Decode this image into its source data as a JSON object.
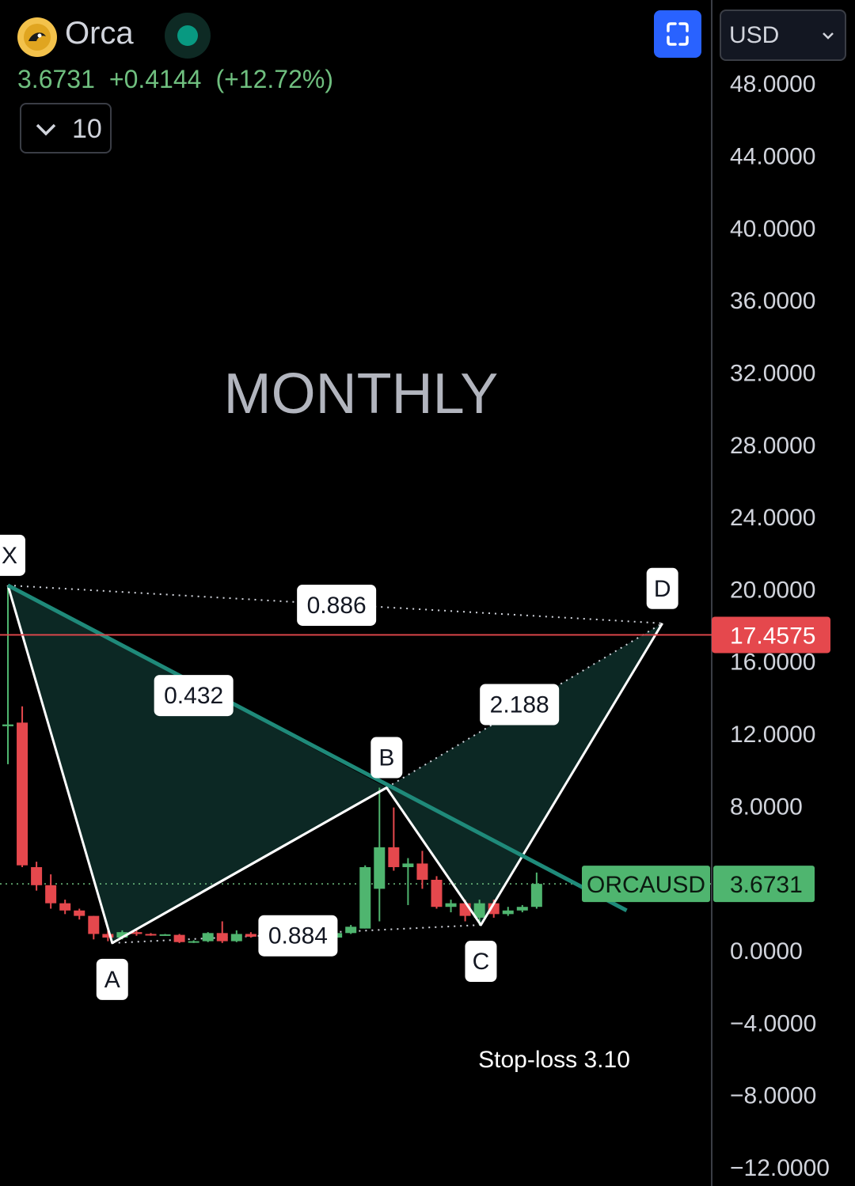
{
  "header": {
    "symbol_name": "Orca",
    "last_price": "3.6731",
    "change": "+0.4144",
    "change_pct": "(+12.72%)",
    "indicator_count": "10",
    "currency": "USD",
    "colors": {
      "up": "#6fbf7f",
      "accent": "#2962ff",
      "live": "#089981"
    },
    "icons": {
      "logo": "orca-logo-icon",
      "status": "market-open-icon",
      "collapse": "chevron-down-icon",
      "fullscreen": "fullscreen-icon",
      "currency": "chevron-down-icon"
    }
  },
  "chart_data": {
    "type": "candlestick",
    "watermark": "MONTHLY",
    "ylim": [
      -12,
      50
    ],
    "y_ticks": [
      "48.0000",
      "44.0000",
      "40.0000",
      "36.0000",
      "32.0000",
      "28.0000",
      "24.0000",
      "20.0000",
      "16.0000",
      "12.0000",
      "8.0000",
      "0.0000",
      "−4.0000",
      "−8.0000",
      "−12.0000"
    ],
    "y_tick_values": [
      48,
      44,
      40,
      36,
      32,
      28,
      24,
      20,
      16,
      12,
      8,
      0,
      -4,
      -8,
      -12
    ],
    "candles": [
      {
        "o": 12.4,
        "h": 20.2,
        "l": 10.3,
        "c": 12.5
      },
      {
        "o": 12.6,
        "h": 13.5,
        "l": 4.6,
        "c": 4.7
      },
      {
        "o": 4.6,
        "h": 4.9,
        "l": 3.3,
        "c": 3.6
      },
      {
        "o": 3.6,
        "h": 4.2,
        "l": 2.3,
        "c": 2.6
      },
      {
        "o": 2.6,
        "h": 2.8,
        "l": 2.0,
        "c": 2.2
      },
      {
        "o": 2.2,
        "h": 2.3,
        "l": 1.7,
        "c": 1.9
      },
      {
        "o": 1.9,
        "h": 1.9,
        "l": 0.6,
        "c": 0.9
      },
      {
        "o": 0.9,
        "h": 1.1,
        "l": 0.5,
        "c": 0.7
      },
      {
        "o": 0.7,
        "h": 1.1,
        "l": 0.6,
        "c": 1.0
      },
      {
        "o": 1.0,
        "h": 1.1,
        "l": 0.8,
        "c": 0.9
      },
      {
        "o": 0.9,
        "h": 0.95,
        "l": 0.8,
        "c": 0.85
      },
      {
        "o": 0.85,
        "h": 0.9,
        "l": 0.8,
        "c": 0.88
      },
      {
        "o": 0.85,
        "h": 0.9,
        "l": 0.4,
        "c": 0.45
      },
      {
        "o": 0.45,
        "h": 0.55,
        "l": 0.4,
        "c": 0.5
      },
      {
        "o": 0.5,
        "h": 1.0,
        "l": 0.45,
        "c": 0.95
      },
      {
        "o": 0.95,
        "h": 1.6,
        "l": 0.4,
        "c": 0.5
      },
      {
        "o": 0.5,
        "h": 1.1,
        "l": 0.45,
        "c": 0.9
      },
      {
        "o": 0.9,
        "h": 1.0,
        "l": 0.7,
        "c": 0.75
      },
      {
        "o": 0.75,
        "h": 0.9,
        "l": 0.7,
        "c": 0.8
      },
      {
        "o": 0.8,
        "h": 0.85,
        "l": 0.5,
        "c": 0.55
      },
      {
        "o": 0.55,
        "h": 0.95,
        "l": 0.5,
        "c": 0.9
      },
      {
        "o": 0.9,
        "h": 1.0,
        "l": 0.6,
        "c": 0.65
      },
      {
        "o": 0.65,
        "h": 1.3,
        "l": 0.6,
        "c": 0.7
      },
      {
        "o": 0.7,
        "h": 1.0,
        "l": 0.65,
        "c": 0.95
      },
      {
        "o": 0.95,
        "h": 1.4,
        "l": 0.9,
        "c": 1.3
      },
      {
        "o": 1.2,
        "h": 4.7,
        "l": 1.2,
        "c": 4.6
      },
      {
        "o": 3.4,
        "h": 9.0,
        "l": 1.6,
        "c": 5.7
      },
      {
        "o": 5.7,
        "h": 7.9,
        "l": 4.4,
        "c": 4.6
      },
      {
        "o": 4.6,
        "h": 5.1,
        "l": 2.5,
        "c": 4.8
      },
      {
        "o": 4.8,
        "h": 5.5,
        "l": 3.4,
        "c": 3.9
      },
      {
        "o": 3.9,
        "h": 4.1,
        "l": 2.3,
        "c": 2.4
      },
      {
        "o": 2.4,
        "h": 2.8,
        "l": 2.1,
        "c": 2.6
      },
      {
        "o": 2.6,
        "h": 2.8,
        "l": 1.6,
        "c": 1.9
      },
      {
        "o": 1.8,
        "h": 2.8,
        "l": 1.4,
        "c": 2.6
      },
      {
        "o": 2.6,
        "h": 2.8,
        "l": 1.8,
        "c": 2.0
      },
      {
        "o": 2.0,
        "h": 2.4,
        "l": 1.9,
        "c": 2.2
      },
      {
        "o": 2.2,
        "h": 2.5,
        "l": 2.1,
        "c": 2.4
      },
      {
        "o": 2.4,
        "h": 4.3,
        "l": 2.3,
        "c": 3.6731
      }
    ],
    "pattern": {
      "points": [
        {
          "label": "X",
          "i": 0,
          "y": 20.2
        },
        {
          "label": "A",
          "i": 7.3,
          "y": 0.4
        },
        {
          "label": "B",
          "i": 26.5,
          "y": 9.0
        },
        {
          "label": "C",
          "i": 33.1,
          "y": 1.4
        },
        {
          "label": "D",
          "i": 45.8,
          "y": 18.1
        }
      ],
      "ratios": [
        {
          "label": "0.432",
          "i": 13,
          "y": 14.1
        },
        {
          "label": "0.884",
          "i": 20.3,
          "y": 0.8
        },
        {
          "label": "2.188",
          "i": 35.8,
          "y": 13.6
        },
        {
          "label": "0.886",
          "i": 23,
          "y": 19.1
        }
      ]
    },
    "trendline": {
      "from": {
        "i": 0,
        "y": 20.2
      },
      "to": {
        "i": 43.3,
        "y": 2.2
      }
    },
    "level_line": {
      "value": 17.4575,
      "label": "17.4575"
    },
    "last_price_tag": {
      "name": "ORCAUSD",
      "value": "3.6731"
    },
    "annotation": "Stop-loss 3.10",
    "colors": {
      "up": "#4fb56f",
      "down": "#e5484d",
      "pattern_fill": "#0d2a26",
      "trend": "#1f8a7a",
      "level": "#e5484d",
      "price_tag": "#4fb56f"
    }
  }
}
